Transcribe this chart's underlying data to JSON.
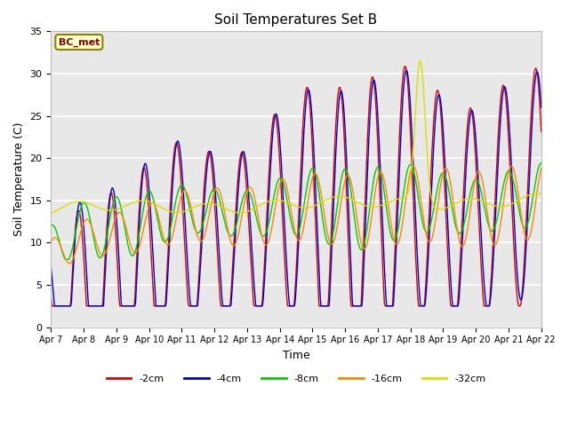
{
  "title": "Soil Temperatures Set B",
  "xlabel": "Time",
  "ylabel": "Soil Temperature (C)",
  "ylim": [
    0,
    35
  ],
  "annotation": "BC_met",
  "legend_labels": [
    "-2cm",
    "-4cm",
    "-8cm",
    "-16cm",
    "-32cm"
  ],
  "legend_colors": [
    "#dd0000",
    "#0000cc",
    "#00cc00",
    "#ff8800",
    "#dddd00"
  ],
  "background_color": "#f0f0f0",
  "tick_labels": [
    "Apr 7",
    "Apr 8",
    "Apr 9",
    "Apr 10",
    "Apr 11",
    "Apr 12",
    "Apr 13",
    "Apr 14",
    "Apr 15",
    "Apr 16",
    "Apr 17",
    "Apr 18",
    "Apr 19",
    "Apr 20",
    "Apr 21",
    "Apr 22"
  ],
  "n_days": 15,
  "samples_per_day": 48
}
